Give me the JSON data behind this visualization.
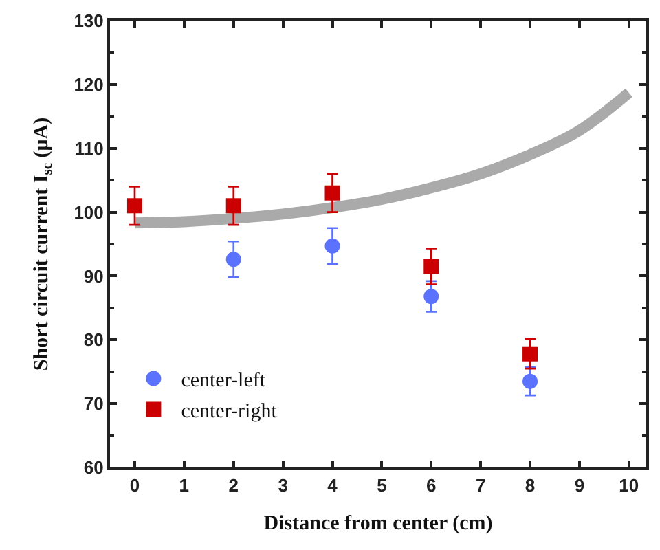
{
  "chart_data": {
    "type": "scatter",
    "xlabel": "Distance from center (cm)",
    "ylabel": "Short circuit current I$_{sc}$ (μA)",
    "xlim": [
      -0.5,
      10.35
    ],
    "xticks": [
      0,
      1,
      2,
      3,
      4,
      5,
      6,
      7,
      8,
      9,
      10
    ],
    "ylim": [
      60,
      130
    ],
    "yticks": [
      60,
      70,
      80,
      90,
      100,
      110,
      120,
      130
    ],
    "legend": "bottom left",
    "series": [
      {
        "type": "line",
        "color": "#aaaaaa",
        "x": [
          0,
          1,
          2,
          3,
          4,
          5,
          6,
          7,
          8,
          9,
          10
        ],
        "values": [
          98.3,
          98.5,
          99,
          99.7,
          100.7,
          102,
          103.8,
          106,
          109,
          112.8,
          118.7
        ],
        "marker": "none",
        "line_style": "solid"
      },
      {
        "name": "center-left",
        "color": "#5b72ff",
        "marker": "circle",
        "x": [
          2,
          4,
          6,
          8
        ],
        "values": [
          92.6,
          94.7,
          86.8,
          73.5
        ],
        "errors": [
          2.8,
          2.8,
          2.4,
          2.2
        ]
      },
      {
        "name": "center-right",
        "color": "#cc0000",
        "marker": "square",
        "x": [
          0,
          2,
          4,
          6,
          8
        ],
        "values": [
          101,
          101,
          103,
          91.5,
          77.8
        ],
        "errors": [
          3,
          3,
          3,
          2.8,
          2.3
        ]
      }
    ]
  }
}
